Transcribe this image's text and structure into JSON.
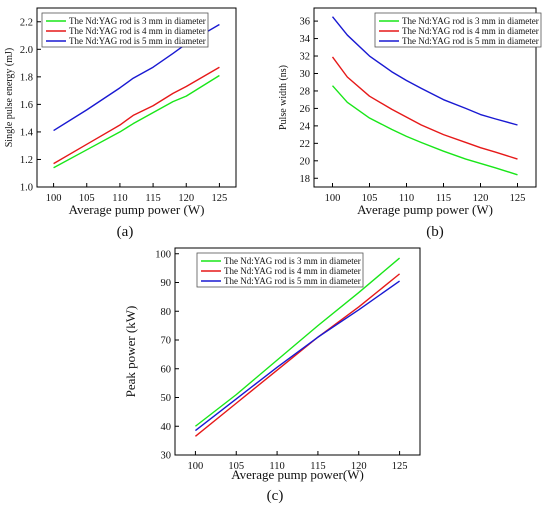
{
  "chart_data": [
    {
      "panel": "(a)",
      "type": "line",
      "title": "",
      "xlabel": "Average pump power (W)",
      "ylabel": "Single pulse energy (mJ)",
      "xlim": [
        97.5,
        127.5
      ],
      "ylim": [
        1.0,
        2.3
      ],
      "xticks": [
        100,
        105,
        110,
        115,
        120,
        125
      ],
      "yticks": [
        1.0,
        1.2,
        1.4,
        1.6,
        1.8,
        2.0,
        2.2
      ],
      "legend_position": "top-left",
      "grid": false,
      "x": [
        100,
        105,
        110,
        112,
        115,
        118,
        120,
        125
      ],
      "series": [
        {
          "name": "The Nd:YAG rod is 3 mm in diameter",
          "color": "#19e619",
          "values": [
            1.14,
            1.27,
            1.4,
            1.46,
            1.54,
            1.62,
            1.66,
            1.81
          ]
        },
        {
          "name": "The Nd:YAG rod is 4 mm in diameter",
          "color": "#e61919",
          "values": [
            1.17,
            1.31,
            1.45,
            1.52,
            1.59,
            1.68,
            1.73,
            1.87
          ]
        },
        {
          "name": "The Nd:YAG rod is 5 mm in diameter",
          "color": "#1919d2",
          "values": [
            1.41,
            1.56,
            1.72,
            1.79,
            1.87,
            1.97,
            2.04,
            2.18
          ]
        }
      ]
    },
    {
      "panel": "(b)",
      "type": "line",
      "title": "",
      "xlabel": "Average pump power (W)",
      "ylabel": "Pulse width (ns)",
      "xlim": [
        97.5,
        127.5
      ],
      "ylim": [
        17,
        37.5
      ],
      "xticks": [
        100,
        105,
        110,
        115,
        120,
        125
      ],
      "yticks": [
        18,
        20,
        22,
        24,
        26,
        28,
        30,
        32,
        34,
        36
      ],
      "legend_position": "top-right",
      "grid": false,
      "x": [
        100,
        102,
        105,
        108,
        110,
        112,
        115,
        118,
        120,
        122,
        125
      ],
      "series": [
        {
          "name": "The Nd:YAG rod is 3 mm in diameter",
          "color": "#19e619",
          "values": [
            28.6,
            26.7,
            24.9,
            23.6,
            22.8,
            22.1,
            21.1,
            20.2,
            19.7,
            19.2,
            18.4
          ]
        },
        {
          "name": "The Nd:YAG rod is 4 mm in diameter",
          "color": "#e61919",
          "values": [
            31.9,
            29.6,
            27.4,
            25.9,
            25.0,
            24.1,
            23.0,
            22.1,
            21.5,
            21.0,
            20.2
          ]
        },
        {
          "name": "The Nd:YAG rod is 5 mm in diameter",
          "color": "#1919d2",
          "values": [
            36.5,
            34.4,
            32.0,
            30.2,
            29.2,
            28.3,
            27.0,
            26.0,
            25.3,
            24.8,
            24.1
          ]
        }
      ]
    },
    {
      "panel": "(c)",
      "type": "line",
      "title": "",
      "xlabel": "Average pump power(W)",
      "ylabel": "Peak power  (kW)",
      "xlim": [
        97.5,
        127.5
      ],
      "ylim": [
        30,
        102
      ],
      "xticks": [
        100,
        105,
        110,
        115,
        120,
        125
      ],
      "yticks": [
        30,
        40,
        50,
        60,
        70,
        80,
        90,
        100
      ],
      "legend_position": "top-left",
      "grid": false,
      "x": [
        100,
        105,
        110,
        115,
        120,
        125
      ],
      "series": [
        {
          "name": "The Nd:YAG rod is 3 mm in diameter",
          "color": "#19e619",
          "values": [
            40.0,
            51.0,
            63.0,
            75.0,
            86.5,
            98.5
          ]
        },
        {
          "name": "The Nd:YAG rod is 4 mm in diameter",
          "color": "#e61919",
          "values": [
            36.5,
            48.0,
            59.5,
            71.0,
            81.5,
            93.0
          ]
        },
        {
          "name": "The Nd:YAG rod is 5 mm in diameter",
          "color": "#1919d2",
          "values": [
            38.5,
            49.5,
            60.5,
            71.0,
            80.5,
            90.5
          ]
        }
      ]
    }
  ]
}
